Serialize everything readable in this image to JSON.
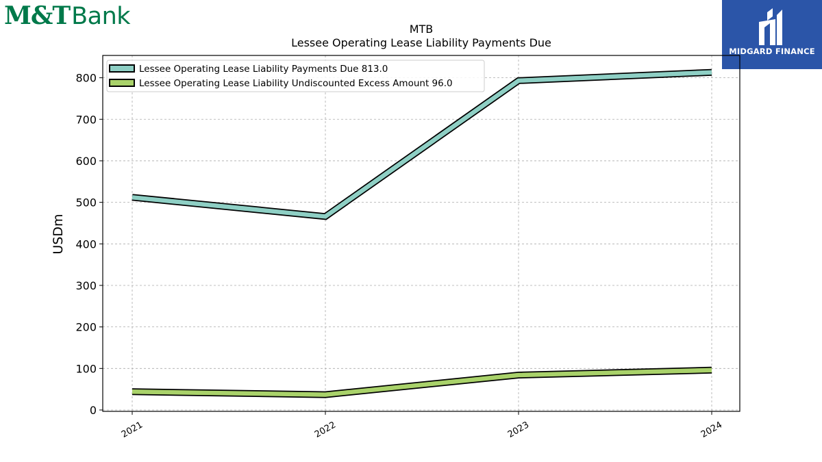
{
  "brand": {
    "logo_bold": "M&T",
    "logo_light": "Bank"
  },
  "watermark": {
    "text": "MIDGARD FINANCE"
  },
  "chart_data": {
    "type": "line",
    "title": "MTB",
    "subtitle": "Lessee Operating Lease Liability Payments Due",
    "ylabel": "USDm",
    "xlabel": "",
    "categories": [
      "2021",
      "2022",
      "2023",
      "2024"
    ],
    "ylim": [
      0,
      850
    ],
    "yticks": [
      0,
      100,
      200,
      300,
      400,
      500,
      600,
      700,
      800
    ],
    "grid": true,
    "legend_position": "top-left",
    "series": [
      {
        "name": "Lessee Operating Lease Liability Payments Due",
        "legend_label": "Lessee Operating Lease Liability Payments Due  813.0",
        "values": [
          512,
          466,
          793,
          813
        ],
        "color": "#8ecfc4"
      },
      {
        "name": "Lessee Operating Lease Liability Undiscounted Excess Amount",
        "legend_label": "Lessee Operating Lease Liability Undiscounted Excess Amount  96.0",
        "values": [
          44,
          37,
          84,
          96
        ],
        "color": "#a9d26a"
      }
    ]
  }
}
